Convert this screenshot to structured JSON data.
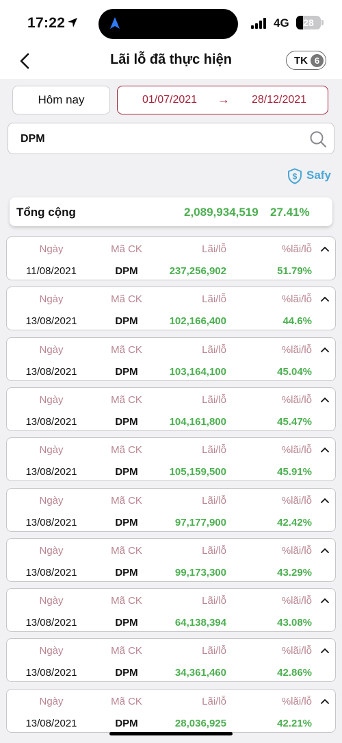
{
  "status": {
    "time": "17:22",
    "network": "4G",
    "battery": "28"
  },
  "header": {
    "title": "Lãi lỗ đã thực hiện",
    "account_label": "TK",
    "account_count": "6"
  },
  "filters": {
    "today_label": "Hôm nay",
    "date_from": "01/07/2021",
    "date_to": "28/12/2021",
    "arrow": "→"
  },
  "search": {
    "value": "DPM"
  },
  "brand": {
    "name": "Safy"
  },
  "summary": {
    "label": "Tổng cộng",
    "amount": "2,089,934,519",
    "percent": "27.41%"
  },
  "columns": {
    "date": "Ngày",
    "code": "Mã CK",
    "pl": "Lãi/lỗ",
    "pct": "%lãi/lỗ"
  },
  "rows": [
    {
      "date": "11/08/2021",
      "code": "DPM",
      "pl": "237,256,902",
      "pct": "51.79%"
    },
    {
      "date": "13/08/2021",
      "code": "DPM",
      "pl": "102,166,400",
      "pct": "44.6%"
    },
    {
      "date": "13/08/2021",
      "code": "DPM",
      "pl": "103,164,100",
      "pct": "45.04%"
    },
    {
      "date": "13/08/2021",
      "code": "DPM",
      "pl": "104,161,800",
      "pct": "45.47%"
    },
    {
      "date": "13/08/2021",
      "code": "DPM",
      "pl": "105,159,500",
      "pct": "45.91%"
    },
    {
      "date": "13/08/2021",
      "code": "DPM",
      "pl": "97,177,900",
      "pct": "42.42%"
    },
    {
      "date": "13/08/2021",
      "code": "DPM",
      "pl": "99,173,300",
      "pct": "43.29%"
    },
    {
      "date": "13/08/2021",
      "code": "DPM",
      "pl": "64,138,394",
      "pct": "43.08%"
    },
    {
      "date": "13/08/2021",
      "code": "DPM",
      "pl": "34,361,460",
      "pct": "42.86%"
    },
    {
      "date": "13/08/2021",
      "code": "DPM",
      "pl": "28,036,925",
      "pct": "42.21%"
    }
  ],
  "colors": {
    "accent": "#a3253a",
    "profit": "#4caf50",
    "header_label": "#b88591",
    "brand": "#4aa7d6"
  }
}
